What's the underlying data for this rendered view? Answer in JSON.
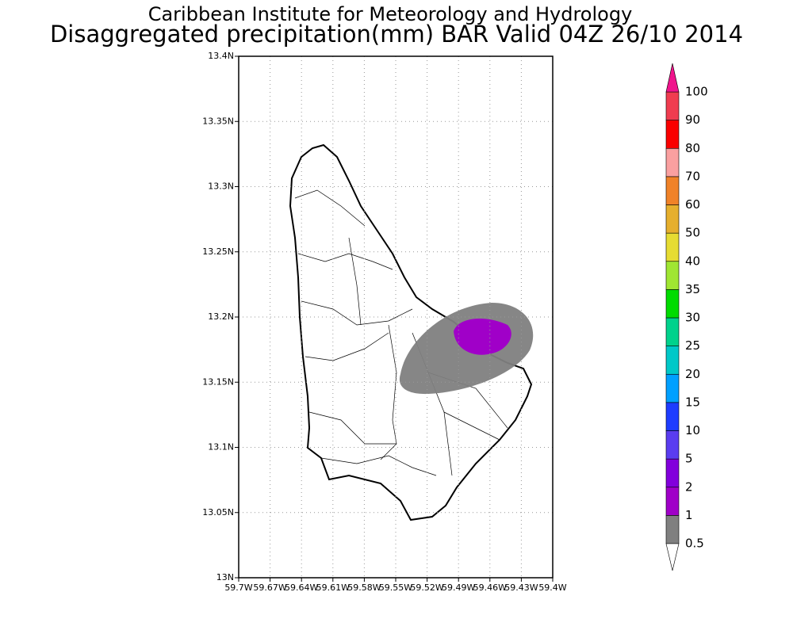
{
  "title": "Caribbean Institute for Meteorology and Hydrology",
  "subtitle": "Disaggregated precipitation(mm) BAR Valid 04Z 26/10 2014",
  "map": {
    "xlim": [
      -59.7,
      -59.4
    ],
    "ylim": [
      13,
      13.4
    ],
    "grid": true,
    "xticks": [
      {
        "value": -59.7,
        "label": "59.7W"
      },
      {
        "value": -59.67,
        "label": "59.67W"
      },
      {
        "value": -59.64,
        "label": "59.64W"
      },
      {
        "value": -59.61,
        "label": "59.61W"
      },
      {
        "value": -59.58,
        "label": "59.58W"
      },
      {
        "value": -59.55,
        "label": "59.55W"
      },
      {
        "value": -59.52,
        "label": "59.52W"
      },
      {
        "value": -59.49,
        "label": "59.49W"
      },
      {
        "value": -59.46,
        "label": "59.46W"
      },
      {
        "value": -59.43,
        "label": "59.43W"
      },
      {
        "value": -59.4,
        "label": "59.4W"
      }
    ],
    "yticks": [
      {
        "value": 13,
        "label": "13N"
      },
      {
        "value": 13.05,
        "label": "13.05N"
      },
      {
        "value": 13.1,
        "label": "13.1N"
      },
      {
        "value": 13.15,
        "label": "13.15N"
      },
      {
        "value": 13.2,
        "label": "13.2N"
      },
      {
        "value": 13.25,
        "label": "13.25N"
      },
      {
        "value": 13.3,
        "label": "13.3N"
      },
      {
        "value": 13.35,
        "label": "13.35N"
      },
      {
        "value": 13.4,
        "label": "13.4N"
      }
    ]
  },
  "colorbar": {
    "levels": [
      0.5,
      1,
      2,
      5,
      10,
      15,
      20,
      25,
      30,
      35,
      40,
      50,
      60,
      70,
      80,
      90,
      100
    ],
    "colors": [
      "#ffffff",
      "#808080",
      "#a000c8",
      "#8200dc",
      "#5a3cf0",
      "#1e3cff",
      "#00a0ff",
      "#00c8c8",
      "#00d28c",
      "#00dc00",
      "#a0e632",
      "#e6dc32",
      "#e6af2d",
      "#f08228",
      "#faa0a0",
      "#fa0000",
      "#f03c50",
      "#f0148c"
    ]
  }
}
